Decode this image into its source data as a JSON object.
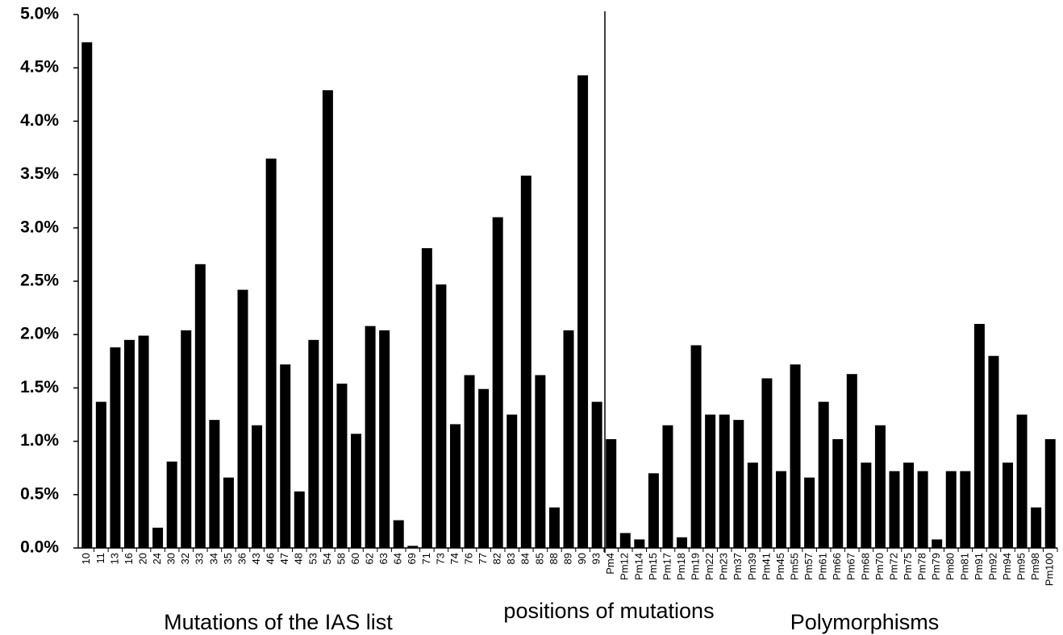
{
  "chart_data": {
    "type": "bar",
    "categories": [
      "10",
      "11",
      "13",
      "16",
      "20",
      "24",
      "30",
      "32",
      "33",
      "34",
      "35",
      "36",
      "43",
      "46",
      "47",
      "48",
      "53",
      "54",
      "58",
      "60",
      "62",
      "63",
      "64",
      "69",
      "71",
      "73",
      "74",
      "76",
      "77",
      "82",
      "83",
      "84",
      "85",
      "88",
      "89",
      "90",
      "93",
      "Pm4",
      "Pm12",
      "Pm14",
      "Pm15",
      "Pm17",
      "Pm18",
      "Pm19",
      "Pm22",
      "Pm23",
      "Pm37",
      "Pm39",
      "Pm41",
      "Pm45",
      "Pm55",
      "Pm57",
      "Pm61",
      "Pm66",
      "Pm67",
      "Pm68",
      "Pm70",
      "Pm72",
      "Pm75",
      "Pm78",
      "Pm79",
      "Pm80",
      "Pm81",
      "Pm91",
      "Pm92",
      "Pm94",
      "Pm95",
      "Pm98",
      "Pm100"
    ],
    "values": [
      4.74,
      1.37,
      1.88,
      1.95,
      1.99,
      0.19,
      0.81,
      2.04,
      2.66,
      1.2,
      0.66,
      2.42,
      1.15,
      3.65,
      1.72,
      0.53,
      1.95,
      4.29,
      1.54,
      1.07,
      2.08,
      2.04,
      0.26,
      0.02,
      2.81,
      2.47,
      1.16,
      1.62,
      1.49,
      3.1,
      1.25,
      3.49,
      1.62,
      0.38,
      2.04,
      4.43,
      1.37,
      1.02,
      0.14,
      0.08,
      0.7,
      1.15,
      0.1,
      1.9,
      1.25,
      1.25,
      1.2,
      0.8,
      1.59,
      0.72,
      1.72,
      0.66,
      1.37,
      1.02,
      1.63,
      0.8,
      1.15,
      0.72,
      0.8,
      0.72,
      0.08,
      0.72,
      0.72,
      2.1,
      1.8,
      0.8,
      1.25,
      0.38,
      1.02
    ],
    "color": "#000000",
    "ylim": [
      0,
      5
    ],
    "yticks": [
      {
        "value": 0,
        "label": "0.0%"
      },
      {
        "value": 0.5,
        "label": "0.5%"
      },
      {
        "value": 1,
        "label": "1.0%"
      },
      {
        "value": 1.5,
        "label": "1.5%"
      },
      {
        "value": 2,
        "label": "2.0%"
      },
      {
        "value": 2.5,
        "label": "2.5%"
      },
      {
        "value": 3,
        "label": "3.0%"
      },
      {
        "value": 3.5,
        "label": "3.5%"
      },
      {
        "value": 4,
        "label": "4.0%"
      },
      {
        "value": 4.5,
        "label": "4.5%"
      },
      {
        "value": 5,
        "label": "5.0%"
      }
    ],
    "annotations": [
      "Mutations of the IAS list",
      "positions of mutations",
      "Polymorphisms"
    ]
  }
}
